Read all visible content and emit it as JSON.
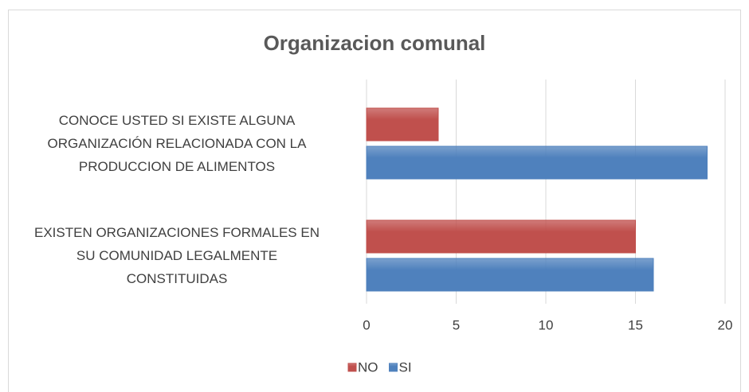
{
  "chart_data": {
    "type": "bar",
    "orientation": "horizontal",
    "title": "Organizacion comunal",
    "categories": [
      "CONOCE USTED SI EXISTE ALGUNA\nORGANIZACIÓN RELACIONADA CON LA\nPRODUCCION DE ALIMENTOS",
      "EXISTEN ORGANIZACIONES FORMALES EN\nSU COMUNIDAD LEGALMENTE\nCONSTITUIDAS"
    ],
    "series": [
      {
        "name": "NO",
        "color": "#c0504d",
        "values": [
          4,
          15
        ]
      },
      {
        "name": "SI",
        "color": "#4f81bd",
        "values": [
          19,
          16
        ]
      }
    ],
    "xlim": [
      0,
      20
    ],
    "xticks": [
      0,
      5,
      10,
      15,
      20
    ],
    "grid": true,
    "legend": "bottom"
  }
}
